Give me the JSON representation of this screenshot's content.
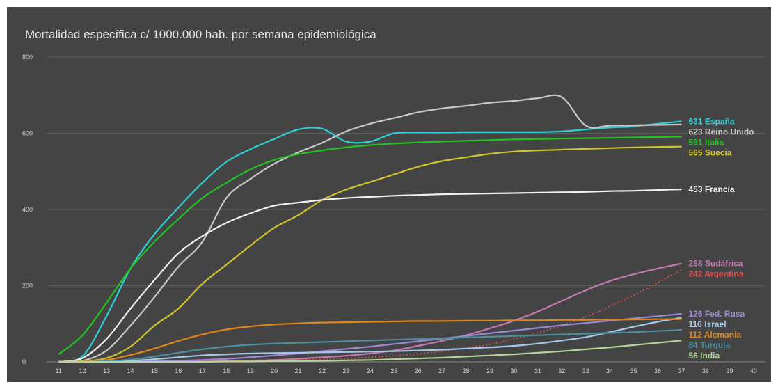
{
  "chart_data": {
    "type": "line",
    "title": "Mortalidad específica c/ 1000.000 hab. por semana epidemiológica",
    "xlabel": "",
    "ylabel": "",
    "x": [
      11,
      12,
      13,
      14,
      15,
      16,
      17,
      18,
      19,
      20,
      21,
      22,
      23,
      24,
      25,
      26,
      27,
      28,
      29,
      30,
      31,
      32,
      33,
      34,
      35,
      36,
      37
    ],
    "x_ticks": [
      "11",
      "12",
      "13",
      "14",
      "15",
      "16",
      "17",
      "18",
      "19",
      "20",
      "21",
      "22",
      "23",
      "24",
      "25",
      "26",
      "27",
      "28",
      "29",
      "30",
      "31",
      "32",
      "33",
      "34",
      "35",
      "36",
      "37",
      "38",
      "39",
      "40"
    ],
    "xlim": [
      11,
      40
    ],
    "y_ticks": [
      "0",
      "200",
      "400",
      "600",
      "800"
    ],
    "ylim": [
      0,
      800
    ],
    "grid": true,
    "background": "#444444",
    "series": [
      {
        "name": "España",
        "color": "#2ecfd6",
        "final_label": "631 España",
        "values": [
          0,
          15,
          120,
          245,
          335,
          405,
          470,
          525,
          558,
          585,
          610,
          612,
          578,
          578,
          600,
          602,
          602,
          603,
          603,
          603,
          603,
          605,
          610,
          615,
          618,
          625,
          631
        ]
      },
      {
        "name": "Reino Unido",
        "color": "#c8c8c8",
        "final_label": "623 Reino Unido",
        "values": [
          0,
          3,
          30,
          95,
          170,
          250,
          315,
          430,
          480,
          520,
          550,
          575,
          605,
          625,
          640,
          655,
          665,
          672,
          680,
          685,
          692,
          695,
          620,
          620,
          621,
          622,
          623
        ]
      },
      {
        "name": "Italia",
        "color": "#22c322",
        "final_label": "591 Italia",
        "values": [
          20,
          70,
          155,
          245,
          315,
          375,
          430,
          470,
          505,
          530,
          545,
          555,
          563,
          569,
          573,
          576,
          578,
          580,
          582,
          584,
          585,
          586,
          587,
          588,
          589,
          590,
          591
        ]
      },
      {
        "name": "Suecia",
        "color": "#cfc42e",
        "final_label": "565 Suecia",
        "values": [
          0,
          2,
          10,
          40,
          95,
          140,
          205,
          255,
          305,
          352,
          385,
          425,
          452,
          472,
          492,
          512,
          527,
          537,
          546,
          552,
          555,
          557,
          559,
          561,
          563,
          564,
          565
        ]
      },
      {
        "name": "Francia",
        "color": "#f2f2f2",
        "final_label": "453 Francia",
        "values": [
          0,
          10,
          60,
          140,
          215,
          285,
          330,
          365,
          390,
          410,
          418,
          425,
          430,
          433,
          436,
          438,
          440,
          441,
          442,
          443,
          444,
          445,
          446,
          448,
          449,
          451,
          453
        ]
      },
      {
        "name": "Sudáfrica",
        "color": "#c47ab0",
        "final_label": "258 Sudáfrica",
        "values": [
          0,
          0,
          0,
          0,
          0,
          0,
          1,
          2,
          3,
          5,
          8,
          12,
          16,
          22,
          30,
          42,
          55,
          70,
          88,
          108,
          132,
          160,
          188,
          212,
          230,
          245,
          258
        ]
      },
      {
        "name": "Argentina",
        "color": "#e05050",
        "final_label": "242 Argentina",
        "dashed": true,
        "values": [
          0,
          0,
          0,
          0,
          0,
          0,
          1,
          2,
          3,
          4,
          5,
          7,
          9,
          12,
          16,
          21,
          28,
          36,
          46,
          60,
          76,
          95,
          118,
          145,
          175,
          208,
          242
        ]
      },
      {
        "name": "Fed. Rusa",
        "color": "#9b88d6",
        "final_label": "126 Fed. Rusa",
        "values": [
          0,
          0,
          0,
          1,
          2,
          3,
          5,
          8,
          12,
          17,
          22,
          28,
          34,
          40,
          47,
          54,
          61,
          68,
          75,
          82,
          89,
          96,
          102,
          108,
          114,
          120,
          126
        ]
      },
      {
        "name": "Israel",
        "color": "#a6c8ec",
        "final_label": "116 Israel",
        "values": [
          0,
          0,
          1,
          3,
          7,
          12,
          17,
          20,
          22,
          23,
          24,
          25,
          26,
          27,
          28,
          30,
          32,
          35,
          38,
          42,
          48,
          56,
          65,
          78,
          92,
          105,
          116
        ]
      },
      {
        "name": "Alemania",
        "color": "#e0861a",
        "final_label": "112 Alemania",
        "values": [
          0,
          1,
          5,
          18,
          35,
          55,
          72,
          85,
          93,
          98,
          101,
          103,
          104,
          105,
          106,
          107,
          107,
          108,
          108,
          109,
          109,
          110,
          110,
          111,
          111,
          112,
          112
        ]
      },
      {
        "name": "Turquía",
        "color": "#4c8fa0",
        "final_label": "84 Turquía",
        "values": [
          0,
          0,
          2,
          6,
          14,
          24,
          33,
          40,
          45,
          48,
          50,
          52,
          54,
          56,
          58,
          60,
          62,
          64,
          66,
          68,
          70,
          72,
          74,
          76,
          78,
          81,
          84
        ]
      },
      {
        "name": "India",
        "color": "#b6d49a",
        "final_label": "56 India",
        "values": [
          0,
          0,
          0,
          0,
          0,
          0,
          0,
          1,
          1,
          2,
          2,
          3,
          4,
          5,
          7,
          9,
          11,
          14,
          17,
          20,
          24,
          28,
          33,
          38,
          44,
          50,
          56
        ]
      }
    ]
  }
}
